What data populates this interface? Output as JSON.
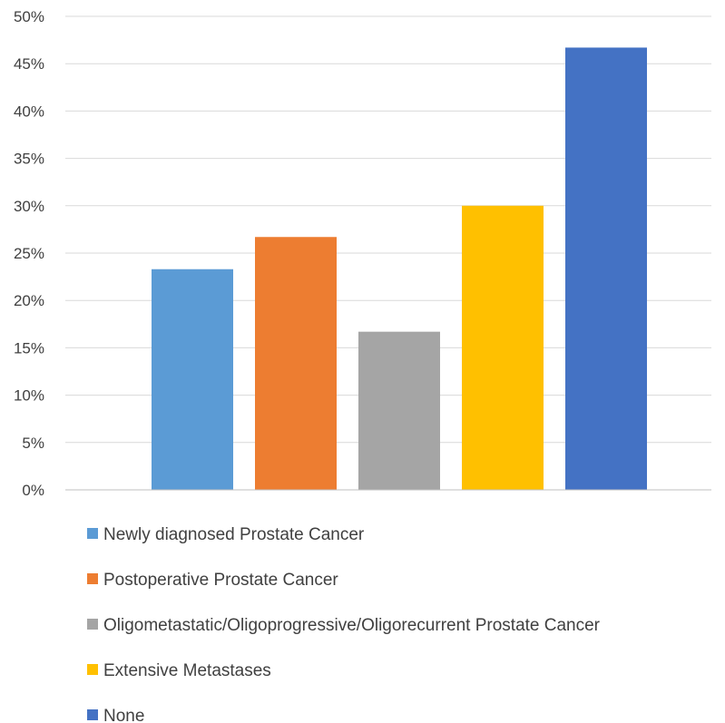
{
  "chart_data": {
    "type": "bar",
    "title": "",
    "xlabel": "",
    "ylabel": "",
    "ylim": [
      0,
      50
    ],
    "y_ticks": [
      "0%",
      "5%",
      "10%",
      "15%",
      "20%",
      "25%",
      "30%",
      "35%",
      "40%",
      "45%",
      "50%"
    ],
    "grid": true,
    "legend_position": "bottom",
    "series": [
      {
        "name": "Newly diagnosed Prostate Cancer",
        "value": 23.3,
        "color": "#5B9BD5"
      },
      {
        "name": "Postoperative Prostate Cancer",
        "value": 26.7,
        "color": "#ED7D31"
      },
      {
        "name": "Oligometastatic/Oligoprogressive/Oligorecurrent Prostate Cancer",
        "value": 16.7,
        "color": "#A5A5A5"
      },
      {
        "name": "Extensive Metastases",
        "value": 30.0,
        "color": "#FFC000"
      },
      {
        "name": "None",
        "value": 46.7,
        "color": "#4472C4"
      }
    ]
  }
}
